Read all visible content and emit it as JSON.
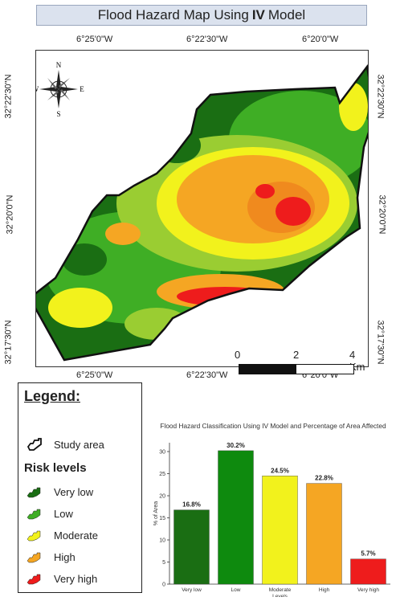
{
  "title": {
    "prefix": "Flood Hazard Map Using",
    "method": "IV",
    "suffix": "Model"
  },
  "map": {
    "top_ticks": [
      "6°25'0\"W",
      "6°22'30\"W",
      "6°20'0\"W"
    ],
    "bottom_ticks": [
      "6°25'0\"W",
      "6°22'30\"W",
      "6°20'0\"W"
    ],
    "left_ticks": [
      "32°22'30\"N",
      "32°20'0\"N",
      "32°17'30\"N"
    ],
    "right_ticks": [
      "32°22'30\"N",
      "32°20'0\"N",
      "32°17'30\"N"
    ],
    "compass": {
      "n": "N",
      "s": "S",
      "e": "E",
      "w": "W"
    },
    "scale_bar": {
      "labels": [
        "0",
        "2",
        "4 Km"
      ]
    }
  },
  "colors": {
    "very_low": "#1a6e13",
    "low": "#3fae25",
    "moderate": "#f2f21c",
    "high": "#f5a623",
    "very_high": "#ee1c1c",
    "title_bg": "#dbe2ee"
  },
  "legend": {
    "title": "Legend:",
    "study_area": "Study area",
    "risk_title": "Risk levels",
    "items": [
      {
        "label": "Very low",
        "color": "#1a6e13"
      },
      {
        "label": "Low",
        "color": "#3fae25"
      },
      {
        "label": "Moderate",
        "color": "#f2f21c"
      },
      {
        "label": "High",
        "color": "#f5a623"
      },
      {
        "label": "Very high",
        "color": "#ee1c1c"
      }
    ]
  },
  "chart_data": {
    "type": "bar",
    "title": "Flood Hazard Classification Using IV Model and Percentage of Area Affected",
    "categories": [
      "Very low",
      "Low",
      "Moderate\nLevels",
      "High",
      "Very high"
    ],
    "values": [
      16.8,
      30.2,
      24.5,
      22.8,
      5.7
    ],
    "value_labels": [
      "16.8%",
      "30.2%",
      "24.5%",
      "22.8%",
      "5.7%"
    ],
    "colors": [
      "#1a6e13",
      "#0e8a0e",
      "#f2f21c",
      "#f5a623",
      "#ee1c1c"
    ],
    "xlabel": "",
    "ylabel": "% of Area",
    "ylim": [
      0,
      32
    ],
    "yticks": [
      0,
      5,
      10,
      15,
      20,
      25,
      30
    ]
  }
}
